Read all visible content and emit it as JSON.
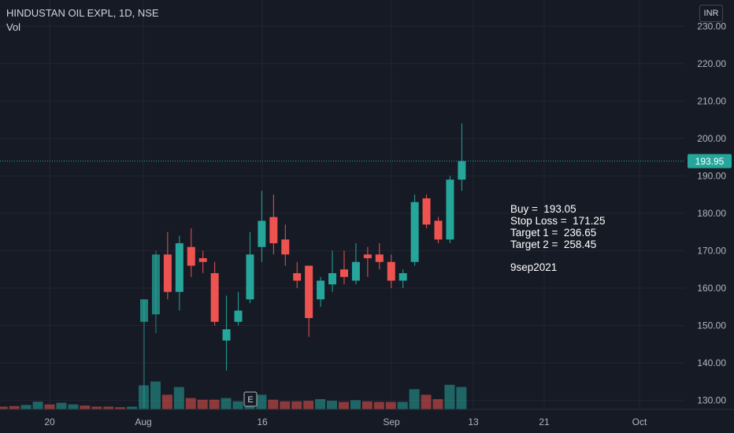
{
  "header": {
    "title": "HINDUSTAN OIL EXPL, 1D, NSE",
    "sub": "Vol"
  },
  "currency": "INR",
  "annotation": {
    "lines": [
      "Buy =  193.05",
      "Stop Loss =  171.25",
      "Target 1 =  236.65",
      "Target 2 =  258.45"
    ],
    "date": "9sep2021"
  },
  "colors": {
    "up": "#26a69a",
    "down": "#ef5350",
    "bg": "#161a25",
    "grid": "#232632",
    "last": "#26a69a"
  },
  "chart_data": {
    "type": "candlestick",
    "y_ticks": [
      "230.00",
      "220.00",
      "210.00",
      "200.00",
      "190.00",
      "180.00",
      "170.00",
      "160.00",
      "150.00",
      "140.00",
      "130.00"
    ],
    "ylim": [
      127.6,
      237
    ],
    "x_ticks": [
      "20",
      "Aug",
      "16",
      "Sep",
      "13",
      "21",
      "Oct"
    ],
    "last_price": "193.95",
    "earnings_marker": "E",
    "candles": [
      {
        "o": 151,
        "h": 157,
        "l": 128,
        "c": 157,
        "v": 0.35
      },
      {
        "o": 153,
        "h": 170,
        "l": 148,
        "c": 169,
        "v": 0.42
      },
      {
        "o": 169,
        "h": 175,
        "l": 157,
        "c": 159,
        "v": 0.18
      },
      {
        "o": 159,
        "h": 174,
        "l": 154,
        "c": 172,
        "v": 0.32
      },
      {
        "o": 171,
        "h": 176,
        "l": 163,
        "c": 166,
        "v": 0.12
      },
      {
        "o": 168,
        "h": 170,
        "l": 164,
        "c": 167,
        "v": 0.09
      },
      {
        "o": 164,
        "h": 167,
        "l": 150,
        "c": 151,
        "v": 0.09
      },
      {
        "o": 146,
        "h": 158,
        "l": 138,
        "c": 149,
        "v": 0.12
      },
      {
        "o": 151,
        "h": 159,
        "l": 150,
        "c": 154,
        "v": 0.06
      },
      {
        "o": 157,
        "h": 175,
        "l": 156,
        "c": 169,
        "v": 0.15
      },
      {
        "o": 171,
        "h": 186,
        "l": 167,
        "c": 178,
        "v": 0.18
      },
      {
        "o": 179,
        "h": 185,
        "l": 169,
        "c": 172,
        "v": 0.09
      },
      {
        "o": 173,
        "h": 177,
        "l": 166,
        "c": 169,
        "v": 0.06
      },
      {
        "o": 164,
        "h": 167,
        "l": 160,
        "c": 162,
        "v": 0.06
      },
      {
        "o": 166,
        "h": 166,
        "l": 147,
        "c": 152,
        "v": 0.07
      },
      {
        "o": 157,
        "h": 163,
        "l": 155,
        "c": 162,
        "v": 0.1
      },
      {
        "o": 161,
        "h": 170,
        "l": 159,
        "c": 164,
        "v": 0.07
      },
      {
        "o": 165,
        "h": 170,
        "l": 161,
        "c": 163,
        "v": 0.05
      },
      {
        "o": 162,
        "h": 172,
        "l": 161,
        "c": 167,
        "v": 0.08
      },
      {
        "o": 169,
        "h": 171,
        "l": 163,
        "c": 168,
        "v": 0.06
      },
      {
        "o": 169,
        "h": 172,
        "l": 165,
        "c": 167,
        "v": 0.05
      },
      {
        "o": 167,
        "h": 169,
        "l": 160,
        "c": 162,
        "v": 0.05
      },
      {
        "o": 162,
        "h": 165,
        "l": 160,
        "c": 164,
        "v": 0.05
      },
      {
        "o": 167,
        "h": 185,
        "l": 166,
        "c": 183,
        "v": 0.28
      },
      {
        "o": 184,
        "h": 185,
        "l": 176,
        "c": 177,
        "v": 0.18
      },
      {
        "o": 178,
        "h": 179,
        "l": 172,
        "c": 173,
        "v": 0.1
      },
      {
        "o": 173,
        "h": 190,
        "l": 172,
        "c": 189,
        "v": 0.36
      },
      {
        "o": 189,
        "h": 204,
        "l": 186,
        "c": 193.95,
        "v": 0.32
      }
    ],
    "watermark_candles": [
      0,
      1
    ]
  }
}
